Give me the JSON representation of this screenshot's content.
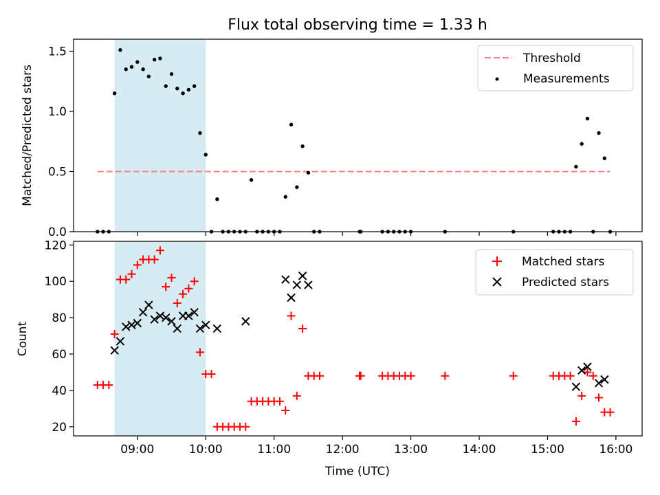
{
  "title": "Flux total observing time = 1.33 h",
  "colors": {
    "shade": "#add8e6",
    "threshold": "#ff7f7f",
    "matched": "#ff0000",
    "predicted": "#000000",
    "measure": "#000000"
  },
  "chart_data": [
    {
      "type": "scatter",
      "ylabel": "Matched/Predicted stars",
      "xlim": [
        "08:04",
        "16:23"
      ],
      "ylim": [
        0,
        1.6
      ],
      "yticks": [
        0.0,
        0.5,
        1.0,
        1.5
      ],
      "ytick_labels": [
        "0.0",
        "0.5",
        "1.0",
        "1.5"
      ],
      "shaded_span": [
        "08:40",
        "10:00"
      ],
      "threshold": {
        "name": "Threshold",
        "y": 0.5,
        "x": [
          "08:25",
          "15:55"
        ]
      },
      "legend": "top-right",
      "series": [
        {
          "name": "Measurements",
          "marker": "dot",
          "points": [
            [
              "08:25",
              0
            ],
            [
              "08:30",
              0
            ],
            [
              "08:35",
              0
            ],
            [
              "08:40",
              1.15
            ],
            [
              "08:45",
              1.51
            ],
            [
              "08:50",
              1.35
            ],
            [
              "08:55",
              1.37
            ],
            [
              "09:00",
              1.41
            ],
            [
              "09:05",
              1.35
            ],
            [
              "09:10",
              1.29
            ],
            [
              "09:15",
              1.43
            ],
            [
              "09:20",
              1.44
            ],
            [
              "09:25",
              1.21
            ],
            [
              "09:30",
              1.31
            ],
            [
              "09:35",
              1.19
            ],
            [
              "09:40",
              1.15
            ],
            [
              "09:45",
              1.18
            ],
            [
              "09:50",
              1.21
            ],
            [
              "09:55",
              0.82
            ],
            [
              "10:00",
              0.64
            ],
            [
              "10:05",
              0
            ],
            [
              "10:10",
              0.27
            ],
            [
              "10:15",
              0
            ],
            [
              "10:20",
              0
            ],
            [
              "10:25",
              0
            ],
            [
              "10:30",
              0
            ],
            [
              "10:35",
              0
            ],
            [
              "10:40",
              0.43
            ],
            [
              "10:45",
              0
            ],
            [
              "10:50",
              0
            ],
            [
              "10:55",
              0
            ],
            [
              "11:00",
              0
            ],
            [
              "11:05",
              0
            ],
            [
              "11:10",
              0.29
            ],
            [
              "11:15",
              0.89
            ],
            [
              "11:20",
              0.37
            ],
            [
              "11:25",
              0.71
            ],
            [
              "11:30",
              0.49
            ],
            [
              "11:35",
              0
            ],
            [
              "11:40",
              0
            ],
            [
              "12:15",
              0
            ],
            [
              "12:16",
              0
            ],
            [
              "12:35",
              0
            ],
            [
              "12:40",
              0
            ],
            [
              "12:45",
              0
            ],
            [
              "12:50",
              0
            ],
            [
              "12:55",
              0
            ],
            [
              "13:00",
              0
            ],
            [
              "13:30",
              0
            ],
            [
              "14:30",
              0
            ],
            [
              "15:05",
              0
            ],
            [
              "15:10",
              0
            ],
            [
              "15:15",
              0
            ],
            [
              "15:20",
              0
            ],
            [
              "15:25",
              0.54
            ],
            [
              "15:30",
              0.73
            ],
            [
              "15:35",
              0.94
            ],
            [
              "15:40",
              0
            ],
            [
              "15:45",
              0.82
            ],
            [
              "15:50",
              0.61
            ],
            [
              "15:55",
              0
            ]
          ]
        }
      ]
    },
    {
      "type": "scatter",
      "xlabel": "Time (UTC)",
      "ylabel": "Count",
      "xlim": [
        "08:04",
        "16:23"
      ],
      "ylim": [
        15,
        122
      ],
      "yticks": [
        20,
        40,
        60,
        80,
        100,
        120
      ],
      "ytick_labels": [
        "20",
        "40",
        "60",
        "80",
        "100",
        "120"
      ],
      "xticks": [
        "09:00",
        "10:00",
        "11:00",
        "12:00",
        "13:00",
        "14:00",
        "15:00",
        "16:00"
      ],
      "shaded_span": [
        "08:40",
        "10:00"
      ],
      "legend": "top-right",
      "series": [
        {
          "name": "Matched stars",
          "marker": "plus",
          "points": [
            [
              "08:25",
              43
            ],
            [
              "08:30",
              43
            ],
            [
              "08:35",
              43
            ],
            [
              "08:40",
              71
            ],
            [
              "08:45",
              101
            ],
            [
              "08:50",
              101
            ],
            [
              "08:55",
              104
            ],
            [
              "09:00",
              109
            ],
            [
              "09:05",
              112
            ],
            [
              "09:10",
              112
            ],
            [
              "09:15",
              112
            ],
            [
              "09:20",
              117
            ],
            [
              "09:25",
              97
            ],
            [
              "09:30",
              102
            ],
            [
              "09:35",
              88
            ],
            [
              "09:40",
              93
            ],
            [
              "09:45",
              96
            ],
            [
              "09:50",
              100
            ],
            [
              "09:55",
              61
            ],
            [
              "10:00",
              49
            ],
            [
              "10:05",
              49
            ],
            [
              "10:10",
              20
            ],
            [
              "10:15",
              20
            ],
            [
              "10:20",
              20
            ],
            [
              "10:25",
              20
            ],
            [
              "10:30",
              20
            ],
            [
              "10:35",
              20
            ],
            [
              "10:40",
              34
            ],
            [
              "10:45",
              34
            ],
            [
              "10:50",
              34
            ],
            [
              "10:55",
              34
            ],
            [
              "11:00",
              34
            ],
            [
              "11:05",
              34
            ],
            [
              "11:10",
              29
            ],
            [
              "11:15",
              81
            ],
            [
              "11:20",
              37
            ],
            [
              "11:25",
              74
            ],
            [
              "11:30",
              48
            ],
            [
              "11:35",
              48
            ],
            [
              "11:40",
              48
            ],
            [
              "12:15",
              48
            ],
            [
              "12:16",
              48
            ],
            [
              "12:35",
              48
            ],
            [
              "12:40",
              48
            ],
            [
              "12:45",
              48
            ],
            [
              "12:50",
              48
            ],
            [
              "12:55",
              48
            ],
            [
              "13:00",
              48
            ],
            [
              "13:30",
              48
            ],
            [
              "14:30",
              48
            ],
            [
              "15:05",
              48
            ],
            [
              "15:10",
              48
            ],
            [
              "15:15",
              48
            ],
            [
              "15:20",
              48
            ],
            [
              "15:25",
              23
            ],
            [
              "15:30",
              37
            ],
            [
              "15:35",
              50
            ],
            [
              "15:40",
              48
            ],
            [
              "15:45",
              36
            ],
            [
              "15:50",
              28
            ],
            [
              "15:55",
              28
            ]
          ]
        },
        {
          "name": "Predicted stars",
          "marker": "x",
          "points": [
            [
              "08:40",
              62
            ],
            [
              "08:45",
              67
            ],
            [
              "08:50",
              75
            ],
            [
              "08:55",
              76
            ],
            [
              "09:00",
              77
            ],
            [
              "09:05",
              83
            ],
            [
              "09:10",
              87
            ],
            [
              "09:15",
              79
            ],
            [
              "09:20",
              81
            ],
            [
              "09:25",
              80
            ],
            [
              "09:30",
              78
            ],
            [
              "09:35",
              74
            ],
            [
              "09:40",
              81
            ],
            [
              "09:45",
              81
            ],
            [
              "09:50",
              83
            ],
            [
              "09:55",
              74
            ],
            [
              "10:00",
              76
            ],
            [
              "10:10",
              74
            ],
            [
              "10:35",
              78
            ],
            [
              "11:10",
              101
            ],
            [
              "11:15",
              91
            ],
            [
              "11:20",
              98
            ],
            [
              "11:25",
              103
            ],
            [
              "11:30",
              98
            ],
            [
              "15:25",
              42
            ],
            [
              "15:30",
              51
            ],
            [
              "15:35",
              53
            ],
            [
              "15:45",
              44
            ],
            [
              "15:50",
              46
            ]
          ]
        }
      ]
    }
  ]
}
